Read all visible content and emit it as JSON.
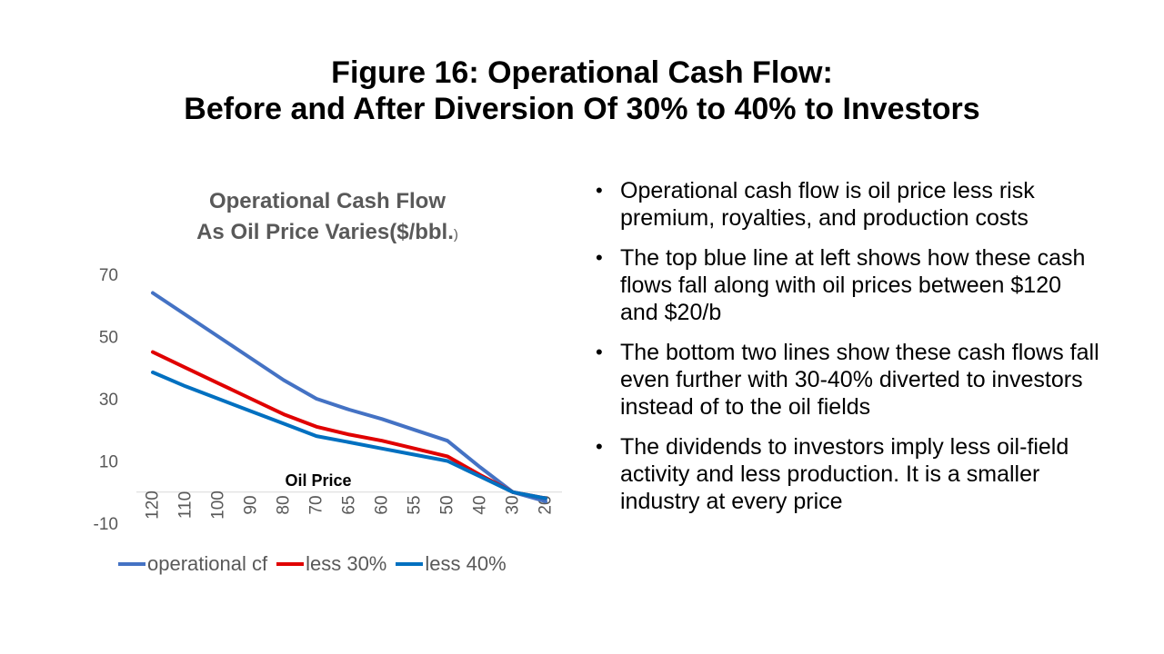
{
  "slide": {
    "title_line1": "Figure 16: Operational Cash Flow:",
    "title_line2": "Before and After Diversion Of 30% to 40% to Investors"
  },
  "bullets": [
    "Operational cash flow is oil price less risk premium, royalties, and production costs",
    "The top blue line at left shows how these cash flows fall along with oil prices between $120 and $20/b",
    "The bottom two lines show these cash flows fall even further with 30-40% diverted to investors instead of to the oil fields",
    "The dividends to investors imply less oil-field activity and less production. It is a smaller industry at every price"
  ],
  "chart_data": {
    "type": "line",
    "title_line1": "Operational Cash Flow",
    "title_line2": "As Oil Price Varies($/bbl.",
    "title_tail": ")",
    "xlabel": "Oil Price",
    "ylabel": "",
    "categories": [
      "120",
      "110",
      "100",
      "90",
      "80",
      "70",
      "65",
      "60",
      "55",
      "50",
      "40",
      "30",
      "20"
    ],
    "y_ticks": [
      "70",
      "50",
      "30",
      "10",
      "-10"
    ],
    "ylim": [
      -10,
      70
    ],
    "grid": false,
    "legend_position": "bottom",
    "series": [
      {
        "name": "operational cf",
        "color": "#4472C4",
        "values": [
          64,
          57,
          50,
          43,
          36,
          30,
          26.5,
          23.5,
          20,
          16.5,
          8,
          0,
          -3
        ]
      },
      {
        "name": "less 30%",
        "color": "#E00000",
        "values": [
          45,
          40,
          35,
          30,
          25,
          21,
          18.5,
          16.5,
          14,
          11.5,
          5.5,
          0,
          -2
        ]
      },
      {
        "name": "less 40%",
        "color": "#0070C0",
        "values": [
          38.5,
          34,
          30,
          26,
          22,
          18,
          16,
          14,
          12,
          10,
          5,
          0,
          -2
        ]
      }
    ]
  }
}
